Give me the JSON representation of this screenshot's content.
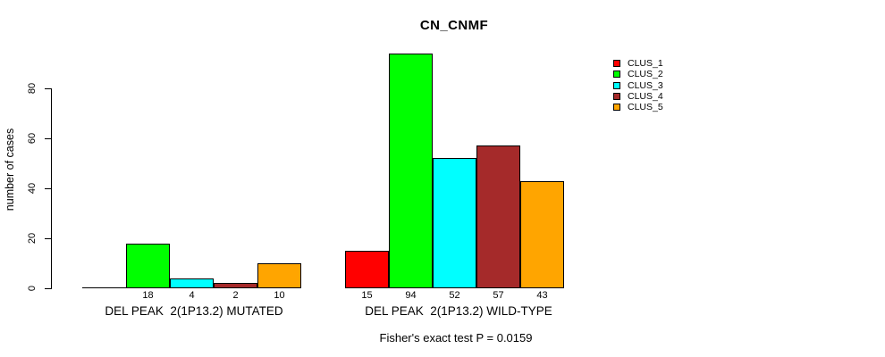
{
  "title": "CN_CNMF",
  "y_axis": {
    "label": "number of cases",
    "ticks": [
      0,
      20,
      40,
      60,
      80
    ]
  },
  "footer": "Fisher's exact test P = 0.0159",
  "legend": {
    "position": "top-right",
    "entries": [
      {
        "label": "CLUS_1",
        "color": "#FF0000"
      },
      {
        "label": "CLUS_2",
        "color": "#00FF00"
      },
      {
        "label": "CLUS_3",
        "color": "#00FFFF"
      },
      {
        "label": "CLUS_4",
        "color": "#A52A2A"
      },
      {
        "label": "CLUS_5",
        "color": "#FFA500"
      }
    ]
  },
  "chart_data": {
    "type": "bar",
    "title": "CN_CNMF",
    "ylabel": "number of cases",
    "xlabel": "",
    "ylim": [
      0,
      94
    ],
    "yticks": [
      0,
      20,
      40,
      60,
      80
    ],
    "grid": false,
    "legend_position": "top-right",
    "series": [
      "CLUS_1",
      "CLUS_2",
      "CLUS_3",
      "CLUS_4",
      "CLUS_5"
    ],
    "colors": [
      "#FF0000",
      "#00FF00",
      "#00FFFF",
      "#A52A2A",
      "#FFA500"
    ],
    "groups": [
      {
        "category": "DEL PEAK  2(1P13.2) MUTATED",
        "values": [
          0,
          18,
          4,
          2,
          10
        ],
        "bar_labels": [
          "",
          "18",
          "4",
          "2",
          "10"
        ]
      },
      {
        "category": "DEL PEAK  2(1P13.2) WILD-TYPE",
        "values": [
          15,
          94,
          52,
          57,
          43
        ],
        "bar_labels": [
          "15",
          "94",
          "52",
          "57",
          "43"
        ]
      }
    ],
    "annotation": "Fisher's exact test P = 0.0159"
  }
}
